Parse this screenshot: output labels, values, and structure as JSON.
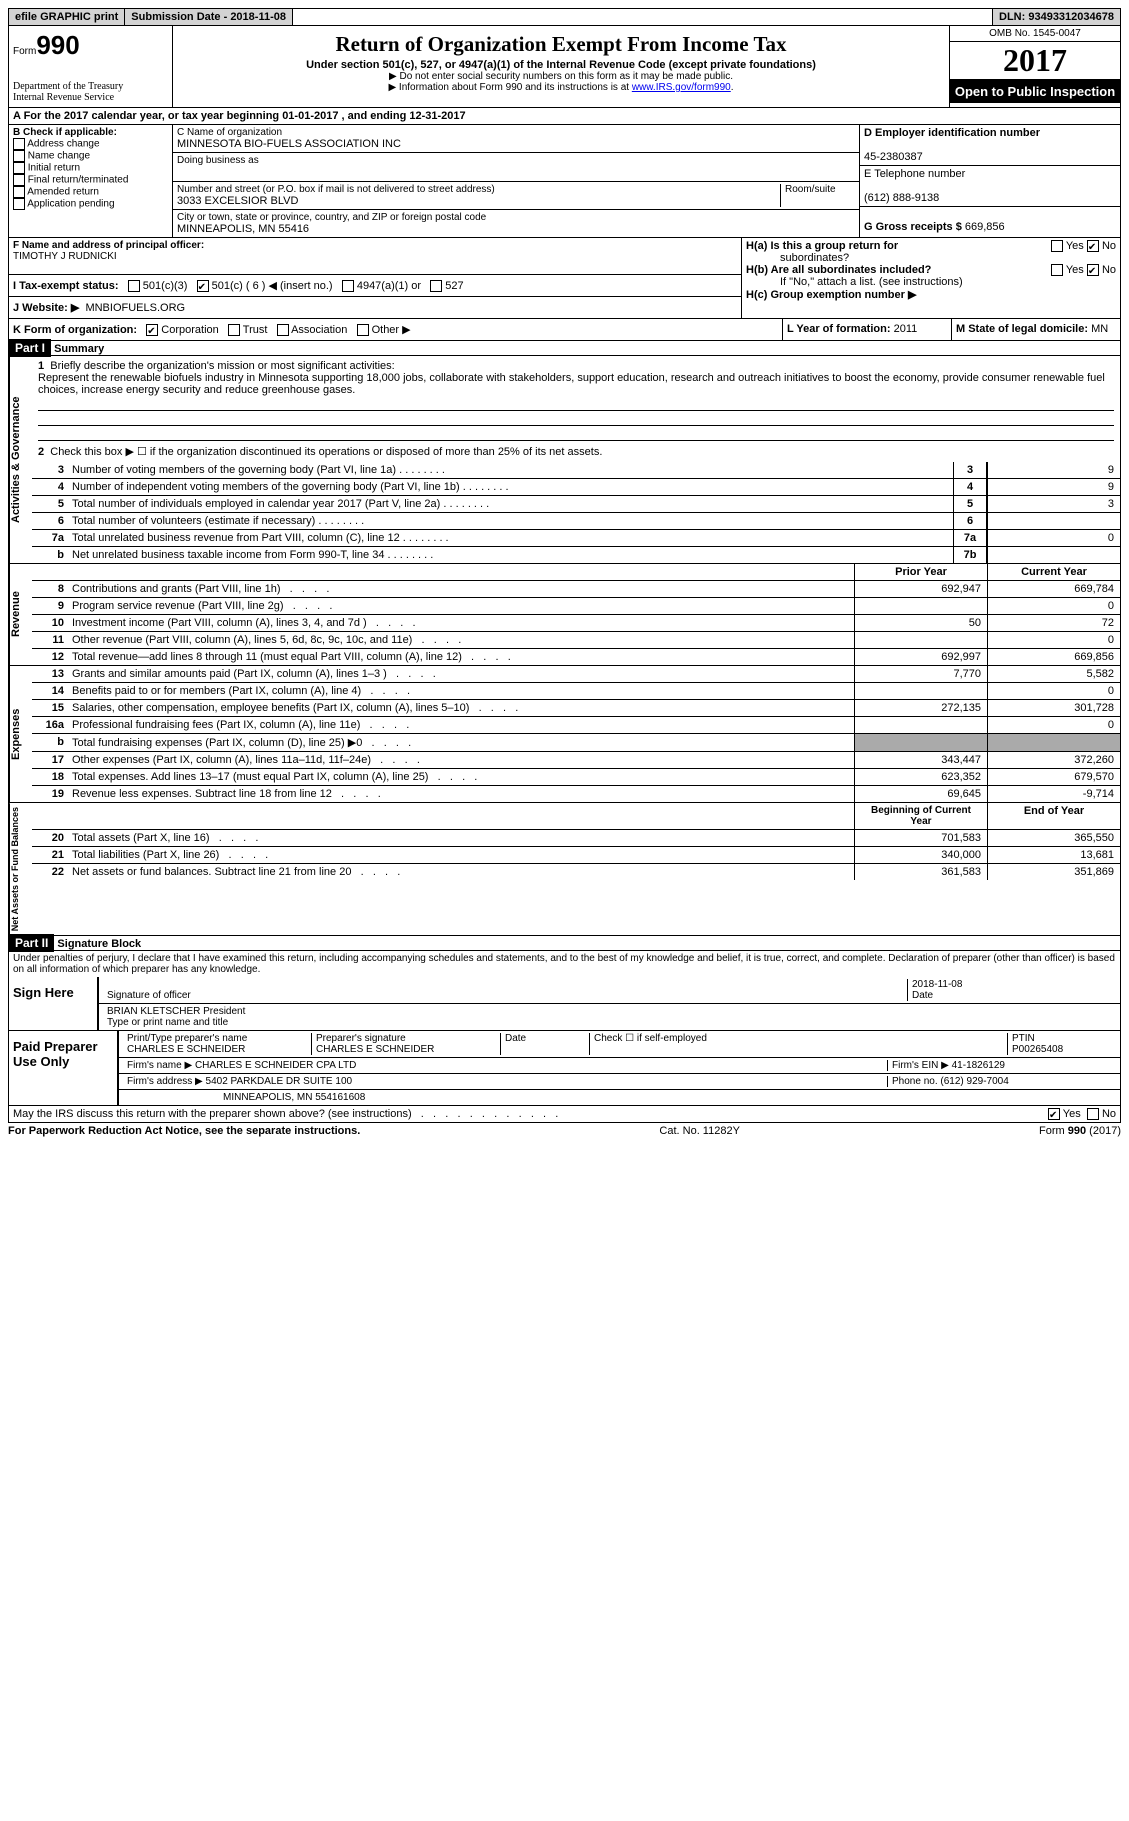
{
  "top_bar": {
    "efile": "efile GRAPHIC print",
    "submission": "Submission Date - 2018-11-08",
    "dln_label": "DLN:",
    "dln": "93493312034678"
  },
  "header": {
    "form_label": "Form",
    "form_num": "990",
    "dept": "Department of the Treasury",
    "irs": "Internal Revenue Service",
    "title": "Return of Organization Exempt From Income Tax",
    "sub": "Under section 501(c), 527, or 4947(a)(1) of the Internal Revenue Code (except private foundations)",
    "note1": "▶ Do not enter social security numbers on this form as it may be made public.",
    "note2": "▶ Information about Form 990 and its instructions is at ",
    "link": "www.IRS.gov/form990",
    "omb": "OMB No. 1545-0047",
    "year": "2017",
    "inspect": "Open to Public Inspection"
  },
  "section_a": "A  For the 2017 calendar year, or tax year beginning 01-01-2017   , and ending 12-31-2017",
  "section_b": {
    "title": "B Check if applicable:",
    "items": [
      "Address change",
      "Name change",
      "Initial return",
      "Final return/terminated",
      "Amended return",
      "Application pending"
    ]
  },
  "section_c": {
    "name_label": "C Name of organization",
    "name": "MINNESOTA BIO-FUELS ASSOCIATION INC",
    "dba_label": "Doing business as",
    "street_label": "Number and street (or P.O. box if mail is not delivered to street address)",
    "room_label": "Room/suite",
    "street": "3033 EXCELSIOR BLVD",
    "city_label": "City or town, state or province, country, and ZIP or foreign postal code",
    "city": "MINNEAPOLIS, MN  55416"
  },
  "section_d": {
    "ein_label": "D Employer identification number",
    "ein": "45-2380387",
    "phone_label": "E Telephone number",
    "phone": "(612) 888-9138",
    "receipts_label": "G Gross receipts $",
    "receipts": "669,856"
  },
  "section_f": {
    "label": "F  Name and address of principal officer:",
    "name": "TIMOTHY J RUDNICKI"
  },
  "section_h": {
    "a": "H(a)  Is this a group return for",
    "a2": "subordinates?",
    "b": "H(b)  Are all subordinates included?",
    "b_note": "If \"No,\" attach a list. (see instructions)",
    "c": "H(c)  Group exemption number ▶",
    "yes": "Yes",
    "no": "No"
  },
  "section_i": {
    "label": "I  Tax-exempt status:",
    "o1": "501(c)(3)",
    "o2": "501(c) ( 6 ) ◀ (insert no.)",
    "o3": "4947(a)(1) or",
    "o4": "527"
  },
  "section_j": {
    "label": "J  Website: ▶",
    "val": "MNBIOFUELS.ORG"
  },
  "section_k": {
    "label": "K Form of organization:",
    "o1": "Corporation",
    "o2": "Trust",
    "o3": "Association",
    "o4": "Other ▶"
  },
  "section_l": {
    "label": "L Year of formation:",
    "val": "2011"
  },
  "section_m": {
    "label": "M State of legal domicile:",
    "val": "MN"
  },
  "part_i": {
    "title": "Part I",
    "sub": "Summary"
  },
  "mission": {
    "line1_num": "1",
    "line1": "Briefly describe the organization's mission or most significant activities:",
    "text": "Represent the renewable biofuels industry in Minnesota supporting 18,000 jobs, collaborate with stakeholders, support education, research and outreach initiatives to boost the economy, provide consumer renewable fuel choices, increase energy security and reduce greenhouse gases.",
    "line2_num": "2",
    "line2": "Check this box ▶ ☐  if the organization discontinued its operations or disposed of more than 25% of its net assets."
  },
  "governance": [
    {
      "n": "3",
      "t": "Number of voting members of the governing body (Part VI, line 1a)",
      "c": "3",
      "v": "9"
    },
    {
      "n": "4",
      "t": "Number of independent voting members of the governing body (Part VI, line 1b)",
      "c": "4",
      "v": "9"
    },
    {
      "n": "5",
      "t": "Total number of individuals employed in calendar year 2017 (Part V, line 2a)",
      "c": "5",
      "v": "3"
    },
    {
      "n": "6",
      "t": "Total number of volunteers (estimate if necessary)",
      "c": "6",
      "v": ""
    },
    {
      "n": "7a",
      "t": "Total unrelated business revenue from Part VIII, column (C), line 12",
      "c": "7a",
      "v": "0"
    },
    {
      "n": "b",
      "t": "Net unrelated business taxable income from Form 990-T, line 34",
      "c": "7b",
      "v": ""
    }
  ],
  "col_headers": {
    "prior": "Prior Year",
    "current": "Current Year"
  },
  "revenue": [
    {
      "n": "8",
      "t": "Contributions and grants (Part VIII, line 1h)",
      "p": "692,947",
      "c": "669,784"
    },
    {
      "n": "9",
      "t": "Program service revenue (Part VIII, line 2g)",
      "p": "",
      "c": "0"
    },
    {
      "n": "10",
      "t": "Investment income (Part VIII, column (A), lines 3, 4, and 7d )",
      "p": "50",
      "c": "72"
    },
    {
      "n": "11",
      "t": "Other revenue (Part VIII, column (A), lines 5, 6d, 8c, 9c, 10c, and 11e)",
      "p": "",
      "c": "0"
    },
    {
      "n": "12",
      "t": "Total revenue—add lines 8 through 11 (must equal Part VIII, column (A), line 12)",
      "p": "692,997",
      "c": "669,856"
    }
  ],
  "expenses": [
    {
      "n": "13",
      "t": "Grants and similar amounts paid (Part IX, column (A), lines 1–3 )",
      "p": "7,770",
      "c": "5,582"
    },
    {
      "n": "14",
      "t": "Benefits paid to or for members (Part IX, column (A), line 4)",
      "p": "",
      "c": "0"
    },
    {
      "n": "15",
      "t": "Salaries, other compensation, employee benefits (Part IX, column (A), lines 5–10)",
      "p": "272,135",
      "c": "301,728"
    },
    {
      "n": "16a",
      "t": "Professional fundraising fees (Part IX, column (A), line 11e)",
      "p": "",
      "c": "0"
    },
    {
      "n": "b",
      "t": "Total fundraising expenses (Part IX, column (D), line 25) ▶0",
      "p": "grey",
      "c": "grey"
    },
    {
      "n": "17",
      "t": "Other expenses (Part IX, column (A), lines 11a–11d, 11f–24e)",
      "p": "343,447",
      "c": "372,260"
    },
    {
      "n": "18",
      "t": "Total expenses. Add lines 13–17 (must equal Part IX, column (A), line 25)",
      "p": "623,352",
      "c": "679,570"
    },
    {
      "n": "19",
      "t": "Revenue less expenses. Subtract line 18 from line 12",
      "p": "69,645",
      "c": "-9,714"
    }
  ],
  "balance_headers": {
    "begin": "Beginning of Current Year",
    "end": "End of Year"
  },
  "balances": [
    {
      "n": "20",
      "t": "Total assets (Part X, line 16)",
      "p": "701,583",
      "c": "365,550"
    },
    {
      "n": "21",
      "t": "Total liabilities (Part X, line 26)",
      "p": "340,000",
      "c": "13,681"
    },
    {
      "n": "22",
      "t": "Net assets or fund balances. Subtract line 21 from line 20",
      "p": "361,583",
      "c": "351,869"
    }
  ],
  "part_ii": {
    "title": "Part II",
    "sub": "Signature Block"
  },
  "perjury": "Under penalties of perjury, I declare that I have examined this return, including accompanying schedules and statements, and to the best of my knowledge and belief, it is true, correct, and complete. Declaration of preparer (other than officer) is based on all information of which preparer has any knowledge.",
  "sign": {
    "label": "Sign Here",
    "sig": "Signature of officer",
    "date": "2018-11-08",
    "date_label": "Date",
    "name": "BRIAN KLETSCHER President",
    "name_label": "Type or print name and title"
  },
  "preparer": {
    "label": "Paid Preparer Use Only",
    "name_label": "Print/Type preparer's name",
    "name": "CHARLES E SCHNEIDER",
    "sig_label": "Preparer's signature",
    "sig": "CHARLES E SCHNEIDER",
    "date_label": "Date",
    "check_label": "Check ☐ if self-employed",
    "ptin_label": "PTIN",
    "ptin": "P00265408",
    "firm_label": "Firm's name    ▶",
    "firm": "CHARLES E SCHNEIDER CPA LTD",
    "ein_label": "Firm's EIN ▶",
    "ein": "41-1826129",
    "addr_label": "Firm's address ▶",
    "addr": "5402 PARKDALE DR SUITE 100",
    "addr2": "MINNEAPOLIS, MN  554161608",
    "phone_label": "Phone no.",
    "phone": "(612) 929-7004"
  },
  "discuss": {
    "q": "May the IRS discuss this return with the preparer shown above? (see instructions)",
    "yes": "Yes",
    "no": "No"
  },
  "footer": {
    "left": "For Paperwork Reduction Act Notice, see the separate instructions.",
    "mid": "Cat. No. 11282Y",
    "right": "Form 990 (2017)"
  },
  "vert_labels": {
    "gov": "Activities & Governance",
    "rev": "Revenue",
    "exp": "Expenses",
    "bal": "Net Assets or Fund Balances"
  }
}
